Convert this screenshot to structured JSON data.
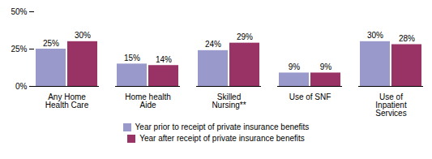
{
  "chart_data": {
    "type": "bar",
    "categories": [
      "Any Home\nHealth Care",
      "Home health\nAide",
      "Skilled\nNursing**",
      "Use of SNF",
      "Use of\nInpatient\nServices"
    ],
    "series": [
      {
        "name": "Year prior to receipt of private insurance benefits",
        "color": "#9999cc",
        "values": [
          25,
          15,
          24,
          9,
          30
        ],
        "value_labels": [
          "25%",
          "15%",
          "24%",
          "9%",
          "30%"
        ]
      },
      {
        "name": "Year after receipt of private insurance benefits",
        "color": "#993366",
        "values": [
          30,
          14,
          29,
          9,
          28
        ],
        "value_labels": [
          "30%",
          "14%",
          "29%",
          "9%",
          "28%"
        ]
      }
    ],
    "ylim": [
      0,
      50
    ],
    "yticks": [
      {
        "value": 0,
        "label": "0%"
      },
      {
        "value": 25,
        "label": "25%"
      },
      {
        "value": 50,
        "label": "50%"
      }
    ],
    "data_labels": true,
    "grid": false,
    "legend": "bottom"
  }
}
